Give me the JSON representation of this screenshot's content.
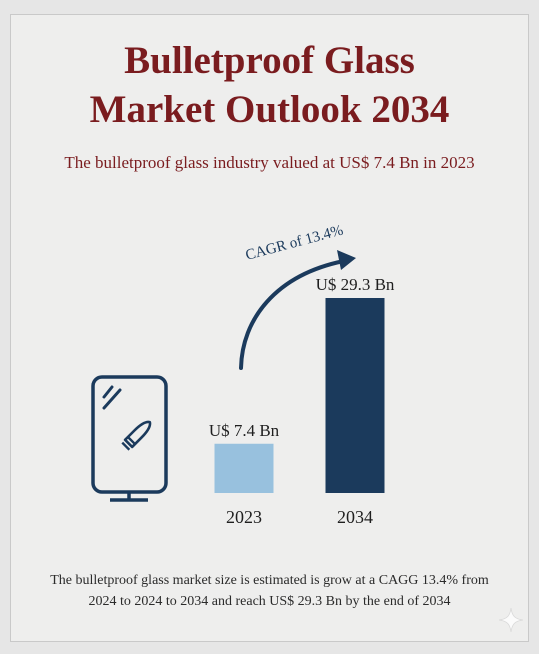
{
  "title_line1": "Bulletproof Glass",
  "title_line2": "Market Outlook 2034",
  "subtitle": "The bulletproof glass industry valued at US$ 7.4 Bn in 2023",
  "footer": "The bulletproof glass market size is estimated is grow at a CAGG 13.4% from 2024 to 2024 to 2034 and reach US$ 29.3 Bn by the end of 2034",
  "colors": {
    "title": "#7a1c1f",
    "bar_2023": "#98c1de",
    "bar_2034": "#1b3a5c",
    "ink": "#1b3a5c"
  },
  "chart_data": {
    "type": "bar",
    "categories": [
      "2023",
      "2034"
    ],
    "values": [
      7.4,
      29.3
    ],
    "data_labels": [
      "U$ 7.4 Bn",
      "U$ 29.3 Bn"
    ],
    "annotation": "CAGR of 13.4%",
    "title": "",
    "xlabel": "",
    "ylabel": "",
    "ylim": [
      0,
      29.3
    ],
    "grid": false
  }
}
